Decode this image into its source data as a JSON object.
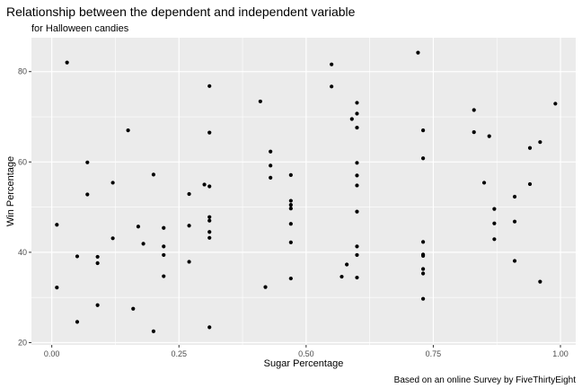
{
  "chart_data": {
    "type": "scatter",
    "title": "Relationship between the dependent and independent variable",
    "subtitle": "for Halloween candies",
    "xlabel": "Sugar Percentage",
    "ylabel": "Win Percentage",
    "caption": "Based on an online Survey by FiveThirtyEight",
    "xlim": [
      -0.04,
      1.03
    ],
    "ylim": [
      19.5,
      87.5
    ],
    "xticks": [
      0.0,
      0.25,
      0.5,
      0.75,
      1.0
    ],
    "xtick_labels": [
      "0.00",
      "0.25",
      "0.50",
      "0.75",
      "1.00"
    ],
    "yticks": [
      20,
      40,
      60,
      80
    ],
    "ytick_labels": [
      "20",
      "40",
      "60",
      "80"
    ],
    "grid": true,
    "legend": "none",
    "colors": {
      "panel": "#ebebeb",
      "grid": "#ffffff",
      "point": "#000000"
    },
    "points": [
      {
        "x": 0.03,
        "y": 82.0
      },
      {
        "x": 0.01,
        "y": 46.1
      },
      {
        "x": 0.01,
        "y": 32.2
      },
      {
        "x": 0.05,
        "y": 39.1
      },
      {
        "x": 0.05,
        "y": 24.6
      },
      {
        "x": 0.07,
        "y": 59.9
      },
      {
        "x": 0.07,
        "y": 52.8
      },
      {
        "x": 0.09,
        "y": 39.0
      },
      {
        "x": 0.09,
        "y": 37.6
      },
      {
        "x": 0.09,
        "y": 28.3
      },
      {
        "x": 0.12,
        "y": 55.4
      },
      {
        "x": 0.12,
        "y": 43.1
      },
      {
        "x": 0.15,
        "y": 67.0
      },
      {
        "x": 0.16,
        "y": 27.5
      },
      {
        "x": 0.17,
        "y": 45.7
      },
      {
        "x": 0.18,
        "y": 41.9
      },
      {
        "x": 0.2,
        "y": 57.2
      },
      {
        "x": 0.2,
        "y": 22.5
      },
      {
        "x": 0.22,
        "y": 45.4
      },
      {
        "x": 0.22,
        "y": 41.3
      },
      {
        "x": 0.22,
        "y": 39.4
      },
      {
        "x": 0.22,
        "y": 34.7
      },
      {
        "x": 0.27,
        "y": 52.9
      },
      {
        "x": 0.27,
        "y": 45.9
      },
      {
        "x": 0.27,
        "y": 37.9
      },
      {
        "x": 0.3,
        "y": 55.0
      },
      {
        "x": 0.31,
        "y": 76.8
      },
      {
        "x": 0.31,
        "y": 66.5
      },
      {
        "x": 0.31,
        "y": 54.6
      },
      {
        "x": 0.31,
        "y": 47.8
      },
      {
        "x": 0.31,
        "y": 47.0
      },
      {
        "x": 0.31,
        "y": 44.5
      },
      {
        "x": 0.31,
        "y": 43.2
      },
      {
        "x": 0.31,
        "y": 23.4
      },
      {
        "x": 0.41,
        "y": 73.4
      },
      {
        "x": 0.42,
        "y": 32.3
      },
      {
        "x": 0.43,
        "y": 62.3
      },
      {
        "x": 0.43,
        "y": 59.2
      },
      {
        "x": 0.43,
        "y": 56.5
      },
      {
        "x": 0.47,
        "y": 57.1
      },
      {
        "x": 0.47,
        "y": 51.4
      },
      {
        "x": 0.47,
        "y": 50.5
      },
      {
        "x": 0.47,
        "y": 49.7
      },
      {
        "x": 0.47,
        "y": 46.3
      },
      {
        "x": 0.47,
        "y": 42.2
      },
      {
        "x": 0.47,
        "y": 34.2
      },
      {
        "x": 0.55,
        "y": 81.6
      },
      {
        "x": 0.55,
        "y": 76.7
      },
      {
        "x": 0.57,
        "y": 34.6
      },
      {
        "x": 0.58,
        "y": 37.3
      },
      {
        "x": 0.59,
        "y": 69.5
      },
      {
        "x": 0.6,
        "y": 73.1
      },
      {
        "x": 0.6,
        "y": 70.7
      },
      {
        "x": 0.6,
        "y": 67.6
      },
      {
        "x": 0.6,
        "y": 59.8
      },
      {
        "x": 0.6,
        "y": 57.0
      },
      {
        "x": 0.6,
        "y": 54.8
      },
      {
        "x": 0.6,
        "y": 49.0
      },
      {
        "x": 0.6,
        "y": 41.3
      },
      {
        "x": 0.6,
        "y": 39.4
      },
      {
        "x": 0.6,
        "y": 34.4
      },
      {
        "x": 0.72,
        "y": 84.2
      },
      {
        "x": 0.73,
        "y": 67.0
      },
      {
        "x": 0.73,
        "y": 60.8
      },
      {
        "x": 0.73,
        "y": 42.3
      },
      {
        "x": 0.73,
        "y": 39.5
      },
      {
        "x": 0.73,
        "y": 39.2
      },
      {
        "x": 0.73,
        "y": 36.3
      },
      {
        "x": 0.73,
        "y": 35.3
      },
      {
        "x": 0.73,
        "y": 29.7
      },
      {
        "x": 0.83,
        "y": 71.5
      },
      {
        "x": 0.83,
        "y": 66.6
      },
      {
        "x": 0.85,
        "y": 55.4
      },
      {
        "x": 0.86,
        "y": 65.7
      },
      {
        "x": 0.87,
        "y": 49.6
      },
      {
        "x": 0.87,
        "y": 46.4
      },
      {
        "x": 0.87,
        "y": 42.9
      },
      {
        "x": 0.91,
        "y": 52.3
      },
      {
        "x": 0.91,
        "y": 46.8
      },
      {
        "x": 0.91,
        "y": 38.1
      },
      {
        "x": 0.94,
        "y": 63.1
      },
      {
        "x": 0.94,
        "y": 55.1
      },
      {
        "x": 0.96,
        "y": 64.4
      },
      {
        "x": 0.96,
        "y": 33.5
      },
      {
        "x": 0.99,
        "y": 72.9
      }
    ]
  }
}
